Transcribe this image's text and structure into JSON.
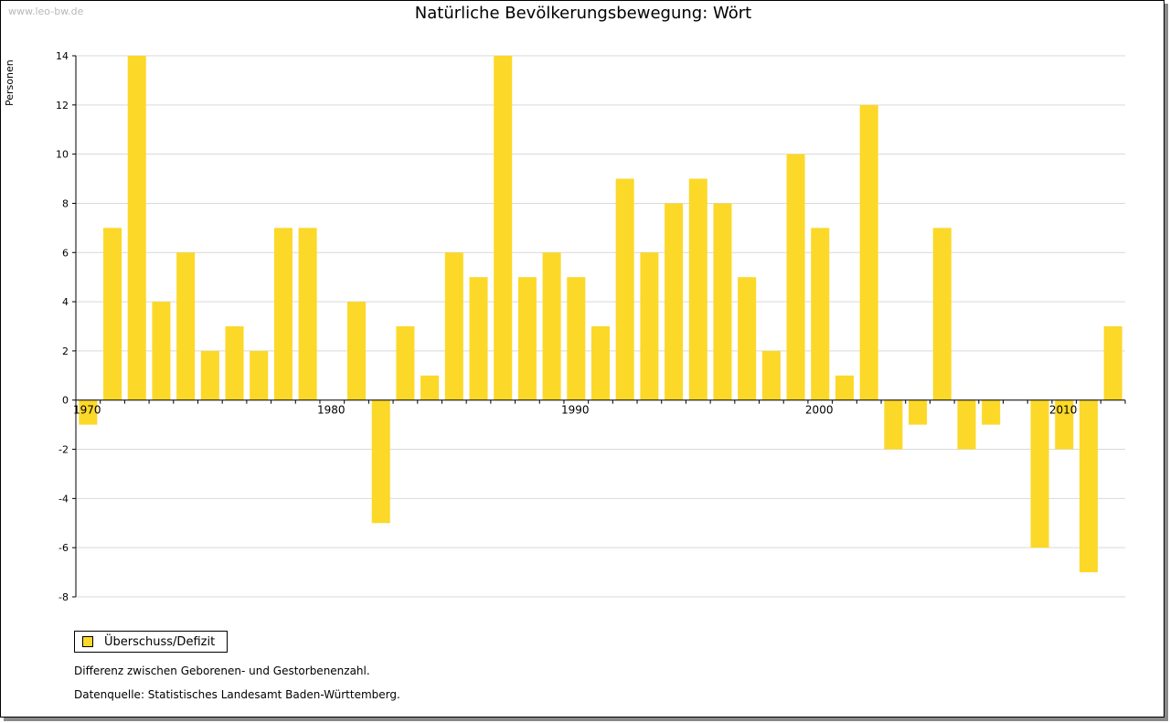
{
  "watermark": "www.leo-bw.de",
  "chart_data": {
    "type": "bar",
    "title": "Natürliche Bevölkerungsbewegung: Wört",
    "ylabel": "Personen",
    "xlabel": "",
    "x": [
      1970,
      1971,
      1972,
      1973,
      1974,
      1975,
      1976,
      1977,
      1978,
      1979,
      1980,
      1981,
      1982,
      1983,
      1984,
      1985,
      1986,
      1987,
      1988,
      1989,
      1990,
      1991,
      1992,
      1993,
      1994,
      1995,
      1996,
      1997,
      1998,
      1999,
      2000,
      2001,
      2002,
      2003,
      2004,
      2005,
      2006,
      2007,
      2008,
      2009,
      2010,
      2011,
      2012
    ],
    "series": [
      {
        "name": "Überschuss/Defizit",
        "color": "#fcd829",
        "values": [
          -1,
          7,
          14,
          4,
          6,
          2,
          3,
          2,
          7,
          7,
          0,
          4,
          -5,
          3,
          1,
          6,
          5,
          14,
          5,
          6,
          5,
          3,
          9,
          6,
          8,
          9,
          8,
          5,
          2,
          10,
          7,
          1,
          12,
          -2,
          -1,
          7,
          -2,
          -1,
          0,
          -6,
          -2,
          -7,
          3
        ]
      }
    ],
    "x_tick_labels": [
      "1970",
      "1980",
      "1990",
      "2000",
      "2010"
    ],
    "y_tick_labels": [
      "14",
      "12",
      "10",
      "8",
      "6",
      "4",
      "2",
      "0",
      "-2",
      "-4",
      "-6",
      "-8"
    ],
    "ylim": [
      -8,
      14
    ],
    "grid": true,
    "legend": "bottom-left"
  },
  "notes": {
    "line1": "Differenz zwischen Geborenen- und Gestorbenenzahl.",
    "line2": "Datenquelle: Statistisches Landesamt Baden-Württemberg."
  }
}
